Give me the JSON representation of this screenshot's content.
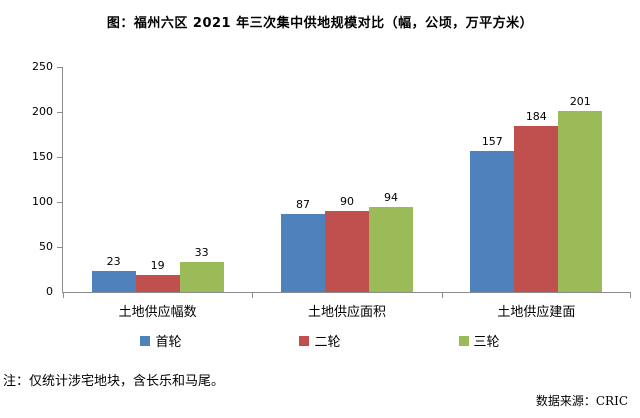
{
  "title": "图：福州六区 2021 年三次集中供地规模对比（幅，公顷，万平方米）",
  "note": "注：仅统计涉宅地块，含长乐和马尾。",
  "source": "数据来源：CRIC",
  "axis_color": "#8c8c8c",
  "chart_data": {
    "type": "bar",
    "title": "图：福州六区 2021 年三次集中供地规模对比（幅，公顷，万平方米）",
    "categories": [
      "土地供应幅数",
      "土地供应面积",
      "土地供应建面"
    ],
    "series": [
      {
        "name": "首轮",
        "color": "#4f81bd",
        "values": [
          23,
          87,
          157
        ]
      },
      {
        "name": "二轮",
        "color": "#c0504d",
        "values": [
          19,
          90,
          184
        ]
      },
      {
        "name": "三轮",
        "color": "#9bbb59",
        "values": [
          33,
          94,
          201
        ]
      }
    ],
    "xlabel": "",
    "ylabel": "",
    "ylim": [
      0,
      250
    ],
    "ytick_step": 50,
    "yticks": [
      0,
      50,
      100,
      150,
      200,
      250
    ],
    "grid": false,
    "legend_position": "bottom",
    "value_labels": true
  }
}
